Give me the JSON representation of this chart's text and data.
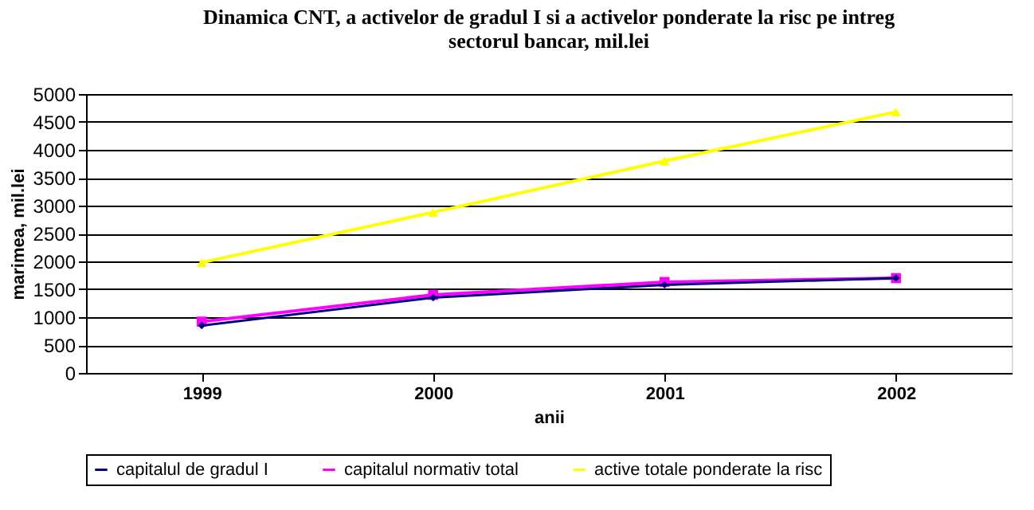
{
  "chart_data": {
    "type": "line",
    "title": "Dinamica CNT, a activelor de gradul I si a activelor ponderate la risc pe intreg sectorul bancar, mil.lei",
    "xlabel": "anii",
    "ylabel": "marimea, mil.lei",
    "categories": [
      "1999",
      "2000",
      "2001",
      "2002"
    ],
    "ylim": [
      0,
      5000
    ],
    "yticks": [
      0,
      500,
      1000,
      1500,
      2000,
      2500,
      3000,
      3500,
      4000,
      4500,
      5000
    ],
    "grid": "y",
    "legend": "bottom",
    "series": [
      {
        "name": "capitalul de gradul I",
        "color": "#000080",
        "marker": "diamond",
        "values": [
          850,
          1350,
          1580,
          1700
        ]
      },
      {
        "name": "capitalul normativ total",
        "color": "#ff00ff",
        "marker": "square",
        "values": [
          920,
          1400,
          1630,
          1700
        ]
      },
      {
        "name": "active totale ponderate la risc",
        "color": "#ffff00",
        "marker": "triangle",
        "values": [
          1980,
          2880,
          3800,
          4680
        ]
      }
    ]
  }
}
